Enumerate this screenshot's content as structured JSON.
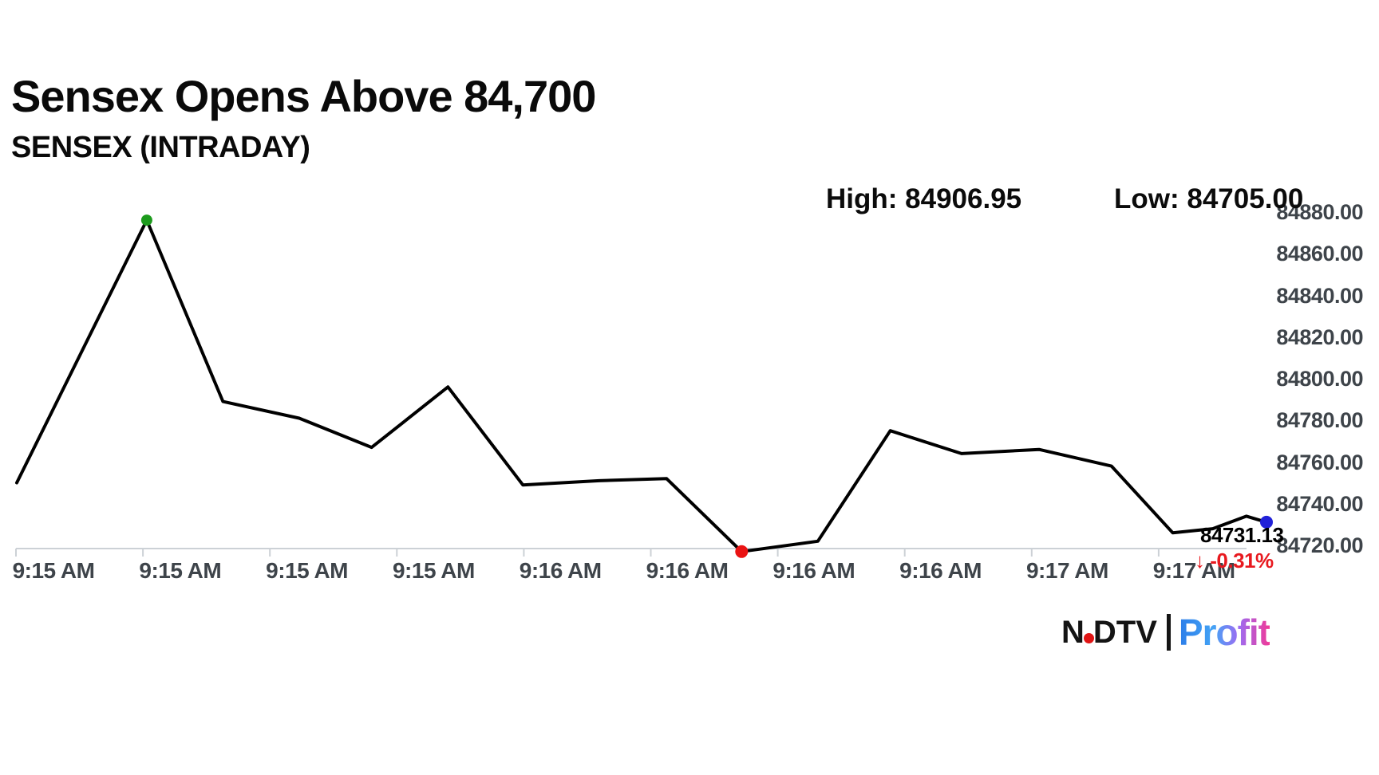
{
  "header": {
    "title": "Sensex Opens Above 84,700",
    "subtitle": "SENSEX (INTRADAY)"
  },
  "stats": {
    "high_label": "High: 84906.95",
    "low_label": "Low: 84705.00"
  },
  "last_price": {
    "value_label": "84731.13",
    "change_label": "↓ -0.31%",
    "change_color": "#e8191f"
  },
  "logo": {
    "ndtv_n": "N",
    "ndtv_dtv": "DTV",
    "profit": "Profit",
    "dot_color": "#e01414"
  },
  "chart_data": {
    "type": "line",
    "title": "Sensex Opens Above 84,700",
    "subtitle": "SENSEX (INTRADAY)",
    "high": 84906.95,
    "low": 84705.0,
    "last": 84731.13,
    "change_pct": "-0.31%",
    "grid": false,
    "legend": "none",
    "line_color": "#000000",
    "axis_color": "#ccd1d6",
    "label_color": "#3e444a",
    "ylim": [
      84714,
      84890
    ],
    "x_tick_labels": [
      "9:15 AM",
      "9:15 AM",
      "9:15 AM",
      "9:15 AM",
      "9:16 AM",
      "9:16 AM",
      "9:16 AM",
      "9:16 AM",
      "9:17 AM",
      "9:17 AM"
    ],
    "y_tick_labels": [
      "84880.00",
      "84860.00",
      "84840.00",
      "84820.00",
      "84800.00",
      "84780.00",
      "84760.00",
      "84740.00",
      "84720.00"
    ],
    "marker_colors": {
      "high_close": "#1d9b1d",
      "low_close": "#ea1313",
      "last": "#2121d8"
    },
    "series": [
      {
        "name": "SENSEX",
        "points": [
          {
            "x_pct": 0.0,
            "value": 84750
          },
          {
            "x_pct": 10.4,
            "value": 84876,
            "marker": "high_close"
          },
          {
            "x_pct": 16.5,
            "value": 84789
          },
          {
            "x_pct": 22.6,
            "value": 84781
          },
          {
            "x_pct": 28.4,
            "value": 84767
          },
          {
            "x_pct": 34.5,
            "value": 84796
          },
          {
            "x_pct": 40.5,
            "value": 84749
          },
          {
            "x_pct": 46.6,
            "value": 84751
          },
          {
            "x_pct": 52.0,
            "value": 84752
          },
          {
            "x_pct": 58.0,
            "value": 84717,
            "marker": "low_close"
          },
          {
            "x_pct": 64.1,
            "value": 84722
          },
          {
            "x_pct": 69.9,
            "value": 84775
          },
          {
            "x_pct": 75.6,
            "value": 84764
          },
          {
            "x_pct": 81.8,
            "value": 84766
          },
          {
            "x_pct": 87.6,
            "value": 84758
          },
          {
            "x_pct": 92.5,
            "value": 84726
          },
          {
            "x_pct": 95.7,
            "value": 84728
          },
          {
            "x_pct": 98.4,
            "value": 84734
          },
          {
            "x_pct": 100.0,
            "value": 84731.13,
            "marker": "last"
          }
        ]
      }
    ]
  }
}
